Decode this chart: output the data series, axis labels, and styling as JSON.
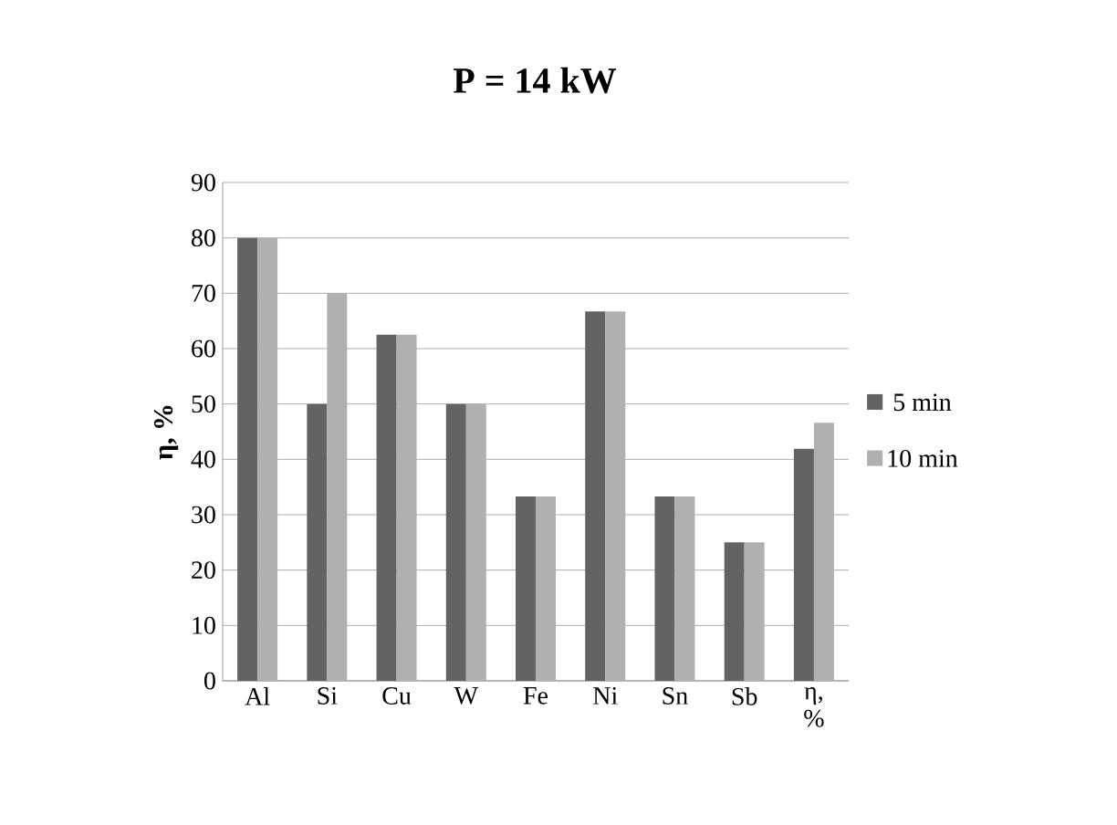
{
  "chart_data": {
    "type": "bar",
    "title": "**P = 14 kW**",
    "ylabel": "**η, %**",
    "categories": [
      "Al",
      "Si",
      "Cu",
      "W",
      "Fe",
      "Ni",
      "Sn",
      "Sb",
      "η, %"
    ],
    "series": [
      {
        "name": "5 min",
        "color": "#636363",
        "values": [
          80,
          50,
          62.5,
          50,
          33.3,
          66.7,
          33.3,
          25,
          41.9
        ]
      },
      {
        "name": "10 min",
        "color": "#b0b0b0",
        "values": [
          80,
          70,
          62.5,
          50,
          33.3,
          66.7,
          33.3,
          25,
          46.6
        ]
      }
    ],
    "ylim": [
      0,
      90
    ],
    "yticks": [
      0,
      10,
      20,
      30,
      40,
      50,
      60,
      70,
      80,
      90
    ],
    "grid": "y",
    "legend": "right"
  }
}
